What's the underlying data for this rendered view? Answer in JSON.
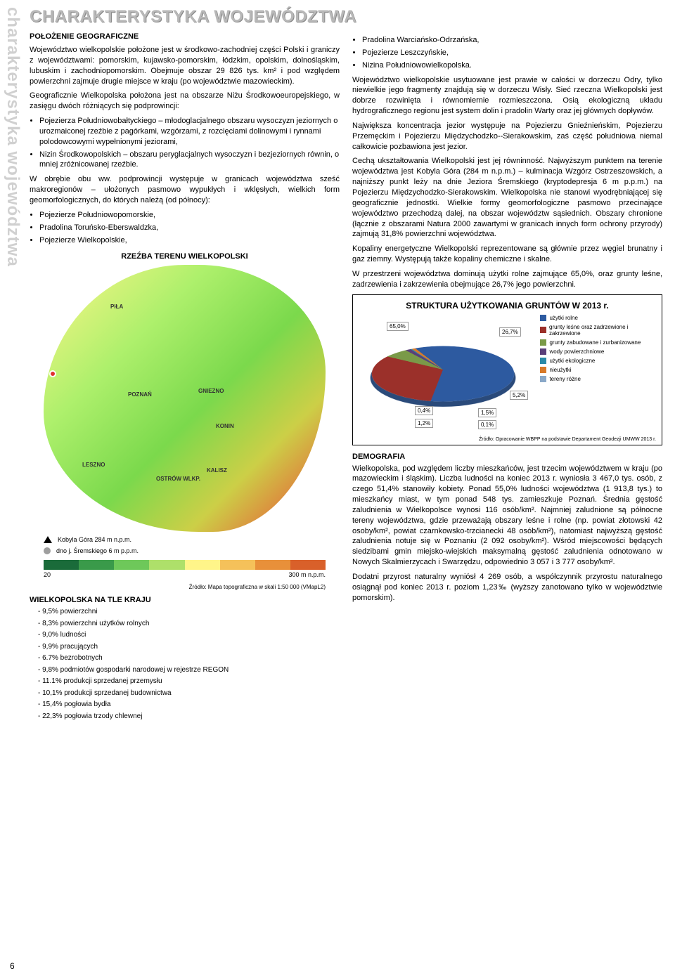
{
  "sidebar_text": "charakterystyka województwa",
  "page_number": "6",
  "title": "CHARAKTERYSTYKA WOJEWÓDZTWA",
  "sect1_head": "POŁOŻENIE GEOGRAFICZNE",
  "p1": "Województwo wielkopolskie położone jest w środkowo-zachodniej części Polski i graniczy z województwami: pomorskim, kujawsko-pomorskim, łódzkim, opolskim, dolnośląskim, lubuskim i zachodniopomorskim. Obejmuje obszar 29 826 tys. km² i pod względem powierzchni zajmuje drugie miejsce w kraju (po województwie mazowieckim).",
  "p2": "Geograficznie Wielkopolska położona jest na obszarze Niżu Środkowoeuropejskiego, w zasięgu dwóch różniących się podprowincji:",
  "b1": "Pojezierza Południowobałtyckiego – młodoglacjalnego obszaru wysoczyzn jeziornych o urozmaiconej rzeźbie z pagórkami, wzgórzami, z rozcięciami dolinowymi i rynnami polodowcowymi wypełnionymi jeziorami,",
  "b2": "Nizin Środkowopolskich – obszaru peryglacjalnych wysoczyzn i bezjeziornych równin, o mniej zróżnicowanej rzeźbie.",
  "p3": "W obrębie obu ww. podprowincji występuje w granicach województwa sześć makroregionów – ułożonych pasmowo wypukłych i wklęsłych, wielkich form geomorfologicznych, do których należą (od północy):",
  "b3": "Pojezierze Południowopomorskie,",
  "b4": "Pradolina Toruńsko-Eberswaldzka,",
  "b5": "Pojezierze Wielkopolskie,",
  "rb1": "Pradolina Warciańsko-Odrzańska,",
  "rb2": "Pojezierze Leszczyńskie,",
  "rb3": "Nizina Południowowielkopolska.",
  "rp1": "Województwo wielkopolskie usytuowane jest prawie w całości w dorzeczu Odry, tylko niewielkie jego fragmenty znajdują się w dorzeczu Wisły. Sieć rzeczna Wielkopolski jest dobrze rozwinięta i równomiernie rozmieszczona. Osią ekologiczną układu hydrograficznego regionu jest system dolin i pradolin Warty oraz jej głównych dopływów.",
  "rp2": "Największa koncentracja jezior występuje na Pojezierzu Gnieźnieńskim, Pojezierzu Przemęckim i Pojezierzu Międzychodzko--Sierakowskim, zaś część południowa niemal całkowicie pozbawiona jest jezior.",
  "rp3": "Cechą ukształtowania Wielkopolski jest jej równinność. Najwyższym punktem na terenie województwa jest Kobyla Góra (284 m n.p.m.) – kulminacja Wzgórz Ostrzeszowskich, a najniższy punkt leży na dnie Jeziora Śremskiego (kryptodepresja 6 m p.p.m.) na Pojezierzu Międzychodzko-Sierakowskim. Wielkopolska nie stanowi wyodrębniającej się geograficznie jednostki. Wielkie formy geomorfologiczne pasmowo przecinające województwo przechodzą dalej, na obszar województw sąsiednich. Obszary chronione (łącznie z obszarami Natura 2000 zawartymi w granicach innych form ochrony przyrody) zajmują 31,8% powierzchni województwa.",
  "rp4": "Kopaliny energetyczne Wielkopolski reprezentowane są głównie przez węgiel brunatny i gaz ziemny. Występują także kopaliny chemiczne i skalne.",
  "rp5": "W przestrzeni województwa dominują użytki rolne zajmujące 65,0%, oraz grunty leśne, zadrzewienia i zakrzewienia obejmujące 26,7% jego powierzchni.",
  "map_title": "RZEŹBA TERENU WIELKOPOLSKI",
  "map_labels": {
    "pila": "PIŁA",
    "poznan": "POZNAŃ",
    "gniezno": "GNIEZNO",
    "konin": "KONIN",
    "leszno": "LESZNO",
    "ostrow": "OSTRÓW WLKP.",
    "kalisz": "KALISZ"
  },
  "legend1": "Kobyla Góra 284 m n.p.m.",
  "legend2": "dno j. Śremskiego   6 m p.p.m.",
  "grad_min": "20",
  "grad_max": "300 m n.p.m.",
  "grad_colors": [
    "#1a6b3a",
    "#3a9a4a",
    "#6ec85a",
    "#aee06a",
    "#fff589",
    "#f5c15a",
    "#e8903a",
    "#d9602a"
  ],
  "map_src": "Źródło: Mapa topograficzna w skali 1:50 000 (VMapL2)",
  "stats_head": "WIELKOPOLSKA NA TLE KRAJU",
  "stats": [
    "9,5% powierzchni",
    "8,3% powierzchni użytków rolnych",
    "9,0% ludności",
    "9,9% pracujących",
    "6.7% bezrobotnych",
    "9,8% podmiotów gospodarki narodowej w rejestrze REGON",
    "11.1% produkcji sprzedanej przemysłu",
    "10,1% produkcji sprzedanej budownictwa",
    "15,4% pogłowia bydła",
    "22,3% pogłowia trzody chlewnej"
  ],
  "chart": {
    "title": "STRUKTURA UŻYTKOWANIA GRUNTÓW W 2013 r.",
    "slices": [
      {
        "label": "użytki rolne",
        "value": 65.0,
        "color": "#2d5aa0",
        "text": "65,0%"
      },
      {
        "label": "grunty leśne oraz zadrzewione i zakrzewione",
        "value": 26.7,
        "color": "#9b302a",
        "text": "26,7%"
      },
      {
        "label": "grunty zabudowane i zurbanizowane",
        "value": 5.2,
        "color": "#7a9a48",
        "text": "5,2%"
      },
      {
        "label": "wody powierzchniowe",
        "value": 1.5,
        "color": "#5a3f7a",
        "text": "1,5%"
      },
      {
        "label": "użytki ekologiczne",
        "value": 0.4,
        "color": "#2a8aa8",
        "text": "0,4%"
      },
      {
        "label": "nieużytki",
        "value": 1.2,
        "color": "#d87a2a",
        "text": "1,2%"
      },
      {
        "label": "tereny różne",
        "value": 0.1,
        "color": "#8aa8c8",
        "text": "0,1%"
      }
    ],
    "src": "Źródło: Opracowanie WBPP na podstawie Departament Geodezji UMWW 2013 r."
  },
  "demo_head": "DEMOGRAFIA",
  "demo_p1": "Wielkopolska, pod względem liczby mieszkańców, jest trzecim województwem w kraju (po mazowieckim i śląskim). Liczba ludności na koniec 2013 r. wyniosła 3 467,0 tys. osób, z czego 51,4% stanowiły kobiety. Ponad 55,0% ludności województwa (1 913,8 tys.) to mieszkańcy miast, w tym ponad 548 tys. zamieszkuje Poznań. Średnia gęstość zaludnienia w Wielkopolsce wynosi 116 osób/km². Najmniej zaludnione są północne tereny województwa, gdzie przeważają obszary leśne i rolne (np. powiat złotowski 42 osoby/km², powiat czarnkowsko-trzcianecki 48 osób/km²), natomiast najwyższą gęstość zaludnienia notuje się w Poznaniu (2 092 osoby/km²). Wśród miejscowości będących siedzibami gmin miejsko-wiejskich maksymalną gęstość zaludnienia odnotowano w Nowych Skalmierzycach i Swarzędzu, odpowiednio 3 057 i 3 777 osoby/km².",
  "demo_p2": "Dodatni przyrost naturalny wyniósł 4 269 osób, a współczynnik przyrostu naturalnego osiągnął pod koniec 2013 r. poziom 1,23‰ (wyższy zanotowano tylko w województwie pomorskim)."
}
